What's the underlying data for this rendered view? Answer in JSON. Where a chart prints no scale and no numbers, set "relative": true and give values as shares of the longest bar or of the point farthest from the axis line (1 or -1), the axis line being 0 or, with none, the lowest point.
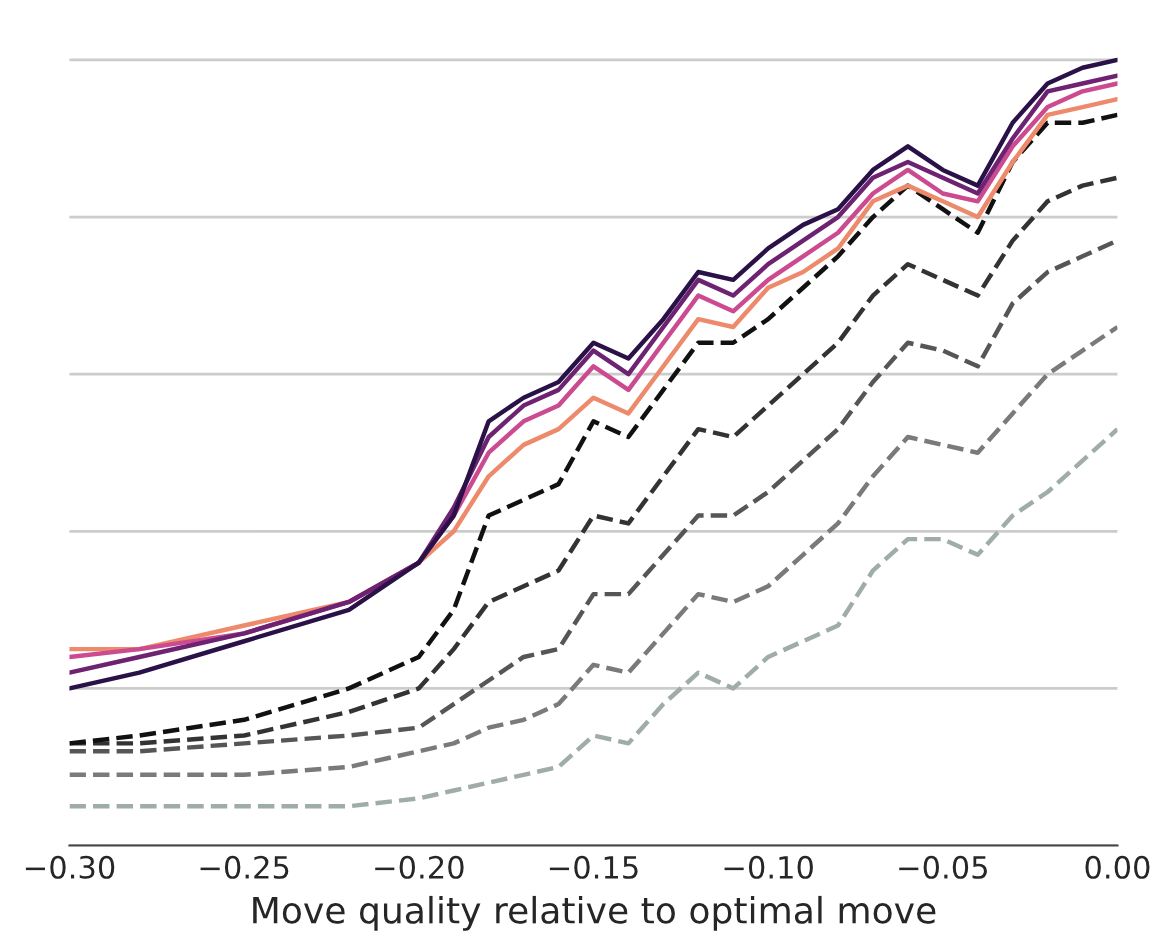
{
  "chart_data": {
    "type": "line",
    "relative": true,
    "xlabel": "Move quality relative to optimal move",
    "x": [
      -0.3,
      -0.28,
      -0.25,
      -0.22,
      -0.2,
      -0.19,
      -0.18,
      -0.17,
      -0.16,
      -0.15,
      -0.14,
      -0.13,
      -0.12,
      -0.11,
      -0.1,
      -0.09,
      -0.08,
      -0.07,
      -0.06,
      -0.05,
      -0.04,
      -0.03,
      -0.02,
      -0.01,
      0.0
    ],
    "xlim": [
      -0.3,
      0.0
    ],
    "xticks": [
      {
        "value": -0.3,
        "label": "−0.30"
      },
      {
        "value": -0.25,
        "label": "−0.25"
      },
      {
        "value": -0.2,
        "label": "−0.20"
      },
      {
        "value": -0.15,
        "label": "−0.15"
      },
      {
        "value": -0.1,
        "label": "−0.10"
      },
      {
        "value": -0.05,
        "label": "−0.05"
      },
      {
        "value": 0.0,
        "label": "0.00"
      }
    ],
    "grid": "y",
    "series": [
      {
        "color": "#9fada6",
        "line_style": "dashed",
        "values": [
          0.05,
          0.05,
          0.05,
          0.05,
          0.06,
          0.07,
          0.08,
          0.09,
          0.1,
          0.14,
          0.13,
          0.18,
          0.22,
          0.2,
          0.24,
          0.26,
          0.28,
          0.35,
          0.39,
          0.39,
          0.37,
          0.42,
          0.45,
          0.49,
          0.53
        ]
      },
      {
        "color": "#7a7a7a",
        "line_style": "dashed",
        "values": [
          0.09,
          0.09,
          0.09,
          0.1,
          0.12,
          0.13,
          0.15,
          0.16,
          0.18,
          0.23,
          0.22,
          0.27,
          0.32,
          0.31,
          0.33,
          0.37,
          0.41,
          0.47,
          0.52,
          0.51,
          0.5,
          0.55,
          0.6,
          0.63,
          0.66
        ]
      },
      {
        "color": "#565656",
        "line_style": "dashed",
        "values": [
          0.12,
          0.12,
          0.13,
          0.14,
          0.15,
          0.18,
          0.21,
          0.24,
          0.25,
          0.32,
          0.32,
          0.37,
          0.42,
          0.42,
          0.45,
          0.49,
          0.53,
          0.59,
          0.64,
          0.63,
          0.61,
          0.69,
          0.73,
          0.75,
          0.77
        ]
      },
      {
        "color": "#333333",
        "line_style": "dashed",
        "values": [
          0.13,
          0.13,
          0.14,
          0.17,
          0.2,
          0.25,
          0.31,
          0.33,
          0.35,
          0.42,
          0.41,
          0.47,
          0.53,
          0.52,
          0.56,
          0.6,
          0.64,
          0.7,
          0.74,
          0.72,
          0.7,
          0.77,
          0.82,
          0.84,
          0.85
        ]
      },
      {
        "color": "#111111",
        "line_style": "dashed",
        "values": [
          0.13,
          0.14,
          0.16,
          0.2,
          0.24,
          0.3,
          0.42,
          0.44,
          0.46,
          0.54,
          0.52,
          0.58,
          0.64,
          0.64,
          0.67,
          0.71,
          0.75,
          0.8,
          0.84,
          0.81,
          0.78,
          0.87,
          0.92,
          0.92,
          0.93
        ]
      },
      {
        "color": "#ee8a6c",
        "line_style": "solid",
        "values": [
          0.25,
          0.25,
          0.28,
          0.31,
          0.36,
          0.4,
          0.47,
          0.51,
          0.53,
          0.57,
          0.55,
          0.61,
          0.67,
          0.66,
          0.71,
          0.73,
          0.76,
          0.82,
          0.84,
          0.82,
          0.8,
          0.87,
          0.93,
          0.94,
          0.95
        ]
      },
      {
        "color": "#cc4a90",
        "line_style": "solid",
        "values": [
          0.24,
          0.25,
          0.27,
          0.31,
          0.36,
          0.42,
          0.5,
          0.54,
          0.56,
          0.61,
          0.58,
          0.64,
          0.7,
          0.68,
          0.72,
          0.75,
          0.78,
          0.83,
          0.86,
          0.83,
          0.82,
          0.89,
          0.94,
          0.96,
          0.97
        ]
      },
      {
        "color": "#6e2272",
        "line_style": "solid",
        "values": [
          0.22,
          0.24,
          0.27,
          0.31,
          0.36,
          0.43,
          0.52,
          0.56,
          0.58,
          0.63,
          0.6,
          0.66,
          0.72,
          0.7,
          0.74,
          0.77,
          0.8,
          0.85,
          0.87,
          0.85,
          0.83,
          0.9,
          0.96,
          0.97,
          0.98
        ]
      },
      {
        "color": "#2a1148",
        "line_style": "solid",
        "values": [
          0.2,
          0.22,
          0.26,
          0.3,
          0.36,
          0.42,
          0.54,
          0.57,
          0.59,
          0.64,
          0.62,
          0.67,
          0.73,
          0.72,
          0.76,
          0.79,
          0.81,
          0.86,
          0.89,
          0.86,
          0.84,
          0.92,
          0.97,
          0.99,
          1.0
        ]
      }
    ]
  }
}
